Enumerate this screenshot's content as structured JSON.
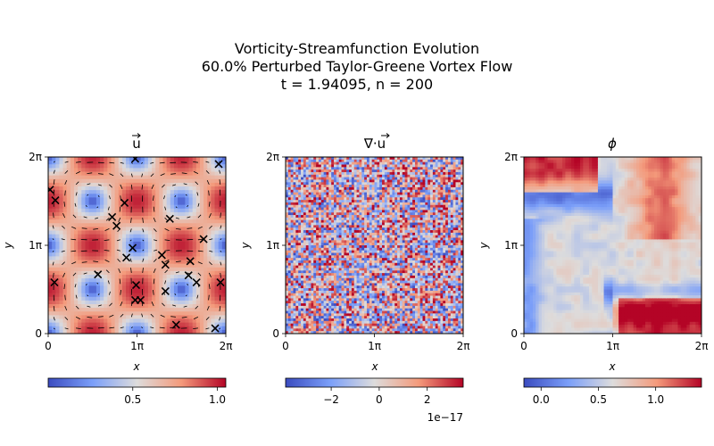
{
  "figure": {
    "title_lines": [
      "Vorticity-Streamfunction Evolution",
      "60.0% Perturbed Taylor-Greene Vortex Flow",
      "t = 1.94095, n = 200"
    ]
  },
  "chart_data": [
    {
      "type": "heatmap",
      "title": "⃗u",
      "title_display": "u",
      "xlabel": "x",
      "ylabel": "y",
      "xlim": [
        0,
        6.2832
      ],
      "ylim": [
        0,
        6.2832
      ],
      "xticks": [
        "0",
        "1π",
        "2π"
      ],
      "yticks": [
        "0",
        "1π",
        "2π"
      ],
      "field": "velocity magnitude |u| of Taylor-Green vortex cells",
      "colormap": "coolwarm",
      "colorbar": {
        "range": [
          0.0,
          1.05
        ],
        "ticks": [
          "0.5",
          "1.0"
        ],
        "tick_values": [
          0.5,
          1.0
        ],
        "offset": ""
      },
      "overlay": "quiver arrows of velocity field",
      "markers": {
        "symbol": "x",
        "points_over_pi": [
          [
            0.98,
            1.98
          ],
          [
            1.92,
            1.92
          ],
          [
            0.02,
            1.63
          ],
          [
            0.08,
            1.51
          ],
          [
            0.86,
            1.48
          ],
          [
            0.72,
            1.32
          ],
          [
            0.77,
            1.22
          ],
          [
            1.37,
            1.3
          ],
          [
            1.75,
            1.07
          ],
          [
            0.95,
            0.97
          ],
          [
            0.88,
            0.86
          ],
          [
            1.28,
            0.89
          ],
          [
            1.32,
            0.78
          ],
          [
            1.6,
            0.82
          ],
          [
            0.56,
            0.67
          ],
          [
            1.58,
            0.66
          ],
          [
            1.67,
            0.58
          ],
          [
            0.07,
            0.58
          ],
          [
            1.94,
            0.58
          ],
          [
            0.99,
            0.55
          ],
          [
            1.32,
            0.48
          ],
          [
            0.98,
            0.38
          ],
          [
            1.04,
            0.38
          ],
          [
            1.44,
            0.1
          ],
          [
            1.88,
            0.06
          ]
        ]
      }
    },
    {
      "type": "heatmap",
      "title": "∇·⃗u",
      "title_display": "∇·u",
      "xlabel": "x",
      "ylabel": "y",
      "xlim": [
        0,
        6.2832
      ],
      "ylim": [
        0,
        6.2832
      ],
      "xticks": [
        "0",
        "1π",
        "2π"
      ],
      "yticks": [
        "0",
        "1π",
        "2π"
      ],
      "field": "velocity divergence (numerical noise)",
      "colormap": "coolwarm",
      "colorbar": {
        "range": [
          -3.9,
          3.5
        ],
        "ticks": [
          "−2",
          "0",
          "2"
        ],
        "tick_values": [
          -2,
          0,
          2
        ],
        "offset": "1e−17"
      }
    },
    {
      "type": "heatmap",
      "title": "ϕ",
      "title_display": "ϕ",
      "xlabel": "x",
      "ylabel": "y",
      "xlim": [
        0,
        6.2832
      ],
      "ylim": [
        0,
        6.2832
      ],
      "xticks": [
        "0",
        "1π",
        "2π"
      ],
      "yticks": [
        "0",
        "1π",
        "2π"
      ],
      "field": "passive scalar ϕ advected by the flow",
      "colormap": "coolwarm",
      "colorbar": {
        "range": [
          -0.15,
          1.4
        ],
        "ticks": [
          "0.0",
          "0.5",
          "1.0"
        ],
        "tick_values": [
          0.0,
          0.5,
          1.0
        ],
        "offset": ""
      }
    }
  ]
}
